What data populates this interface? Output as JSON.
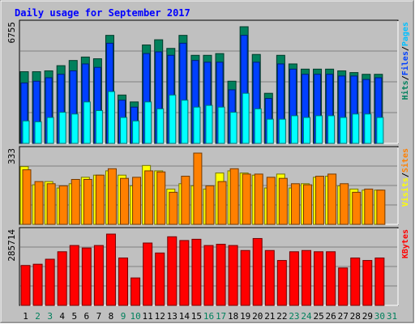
{
  "chart_data": {
    "type": "bar",
    "title": "Daily usage for September 2017",
    "categories": [
      "1",
      "2",
      "3",
      "4",
      "5",
      "6",
      "7",
      "8",
      "9",
      "10",
      "11",
      "12",
      "13",
      "14",
      "15",
      "16",
      "17",
      "18",
      "19",
      "20",
      "21",
      "22",
      "23",
      "24",
      "25",
      "26",
      "27",
      "28",
      "29",
      "30",
      "31"
    ],
    "weekend_days": [
      "2",
      "3",
      "9",
      "10",
      "16",
      "17",
      "23",
      "24",
      "30",
      "31"
    ],
    "panels": [
      {
        "id": "hits-files-pages",
        "ymax_label": "6755",
        "ymax": 6755,
        "right_labels": [
          {
            "text": "Hits",
            "color": "#00805c"
          },
          {
            "text": "/",
            "color": "#000000"
          },
          {
            "text": "Files",
            "color": "#0040ff"
          },
          {
            "text": "/",
            "color": "#000000"
          },
          {
            "text": "Pages",
            "color": "#00c0ff"
          }
        ],
        "series": [
          {
            "name": "Hits",
            "color": "#00805c",
            "values": [
              4150,
              4150,
              4200,
              4500,
              4800,
              5000,
              4900,
              6255,
              2800,
              2400,
              5700,
              6000,
              5500,
              6255,
              5100,
              5100,
              5200,
              3600,
              6755,
              5150,
              2900,
              5100,
              4600,
              4300,
              4300,
              4300,
              4200,
              4100,
              4000,
              4000,
              null
            ]
          },
          {
            "name": "Files",
            "color": "#0040ff",
            "values": [
              3500,
              3600,
              3800,
              4000,
              4200,
              4600,
              4400,
              5800,
              2500,
              2100,
              5200,
              5300,
              5100,
              5800,
              4800,
              4700,
              4700,
              3100,
              6255,
              4700,
              2600,
              4600,
              4300,
              4000,
              4000,
              4000,
              3900,
              3900,
              3700,
              3800,
              null
            ]
          },
          {
            "name": "Pages",
            "color": "#00ffff",
            "values": [
              1300,
              1250,
              1500,
              1800,
              1700,
              2400,
              1900,
              3000,
              1500,
              1300,
              2400,
              2000,
              2800,
              2500,
              2100,
              2200,
              2100,
              1800,
              2900,
              2000,
              1400,
              1400,
              1600,
              1500,
              1600,
              1600,
              1500,
              1700,
              1700,
              1500,
              null
            ]
          }
        ]
      },
      {
        "id": "visits-sites",
        "ymax_label": "333",
        "ymax": 333,
        "right_labels": [
          {
            "text": "Visits",
            "color": "#ffff00"
          },
          {
            "text": "/",
            "color": "#000000"
          },
          {
            "text": "Sites",
            "color": "#ff8000"
          }
        ],
        "series": [
          {
            "name": "Visits",
            "color": "#ffff00",
            "values": [
              270,
              185,
              200,
              170,
              190,
              220,
              230,
              250,
              230,
              180,
              275,
              250,
              165,
              190,
              180,
              165,
              240,
              250,
              240,
              230,
              170,
              235,
              170,
              190,
              220,
              225,
              180,
              165,
              160,
              160,
              null
            ]
          },
          {
            "name": "Sites",
            "color": "#ff8000",
            "values": [
              255,
              200,
              190,
              180,
              210,
              210,
              230,
              260,
              215,
              220,
              250,
              245,
              150,
              225,
              333,
              180,
              200,
              260,
              235,
              235,
              220,
              215,
              190,
              185,
              225,
              235,
              190,
              150,
              165,
              160,
              null
            ]
          }
        ]
      },
      {
        "id": "kbytes",
        "ymax_label": "285714",
        "ymax": 285714,
        "right_labels": [
          {
            "text": "KBytes",
            "color": "#ff0000"
          }
        ],
        "series": [
          {
            "name": "KBytes",
            "color": "#ff0000",
            "values": [
              160000,
              165000,
              185000,
              215000,
              240000,
              230000,
              240000,
              285714,
              190000,
              110000,
              250000,
              210000,
              275000,
              260000,
              265000,
              240000,
              245000,
              240000,
              220000,
              268000,
              220000,
              180000,
              215000,
              220000,
              215000,
              215000,
              150000,
              190000,
              180000,
              190000,
              null
            ]
          }
        ]
      }
    ]
  }
}
